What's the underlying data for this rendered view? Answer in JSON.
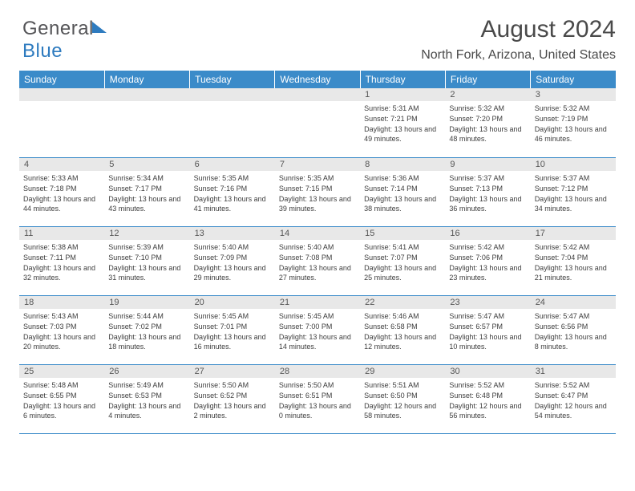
{
  "brand": {
    "part1": "General",
    "part2": "Blue"
  },
  "title": "August 2024",
  "location": "North Fork, Arizona, United States",
  "colors": {
    "header_bg": "#3b8bc9",
    "header_fg": "#ffffff",
    "daynum_bg": "#e8e8e8",
    "border": "#3b8bc9",
    "text": "#3d3d3d",
    "title_color": "#4a4a4a"
  },
  "weekdays": [
    "Sunday",
    "Monday",
    "Tuesday",
    "Wednesday",
    "Thursday",
    "Friday",
    "Saturday"
  ],
  "weeks": [
    [
      {
        "blank": true
      },
      {
        "blank": true
      },
      {
        "blank": true
      },
      {
        "blank": true
      },
      {
        "n": "1",
        "sunrise": "5:31 AM",
        "sunset": "7:21 PM",
        "day_h": "13",
        "day_m": "49"
      },
      {
        "n": "2",
        "sunrise": "5:32 AM",
        "sunset": "7:20 PM",
        "day_h": "13",
        "day_m": "48"
      },
      {
        "n": "3",
        "sunrise": "5:32 AM",
        "sunset": "7:19 PM",
        "day_h": "13",
        "day_m": "46"
      }
    ],
    [
      {
        "n": "4",
        "sunrise": "5:33 AM",
        "sunset": "7:18 PM",
        "day_h": "13",
        "day_m": "44"
      },
      {
        "n": "5",
        "sunrise": "5:34 AM",
        "sunset": "7:17 PM",
        "day_h": "13",
        "day_m": "43"
      },
      {
        "n": "6",
        "sunrise": "5:35 AM",
        "sunset": "7:16 PM",
        "day_h": "13",
        "day_m": "41"
      },
      {
        "n": "7",
        "sunrise": "5:35 AM",
        "sunset": "7:15 PM",
        "day_h": "13",
        "day_m": "39"
      },
      {
        "n": "8",
        "sunrise": "5:36 AM",
        "sunset": "7:14 PM",
        "day_h": "13",
        "day_m": "38"
      },
      {
        "n": "9",
        "sunrise": "5:37 AM",
        "sunset": "7:13 PM",
        "day_h": "13",
        "day_m": "36"
      },
      {
        "n": "10",
        "sunrise": "5:37 AM",
        "sunset": "7:12 PM",
        "day_h": "13",
        "day_m": "34"
      }
    ],
    [
      {
        "n": "11",
        "sunrise": "5:38 AM",
        "sunset": "7:11 PM",
        "day_h": "13",
        "day_m": "32"
      },
      {
        "n": "12",
        "sunrise": "5:39 AM",
        "sunset": "7:10 PM",
        "day_h": "13",
        "day_m": "31"
      },
      {
        "n": "13",
        "sunrise": "5:40 AM",
        "sunset": "7:09 PM",
        "day_h": "13",
        "day_m": "29"
      },
      {
        "n": "14",
        "sunrise": "5:40 AM",
        "sunset": "7:08 PM",
        "day_h": "13",
        "day_m": "27"
      },
      {
        "n": "15",
        "sunrise": "5:41 AM",
        "sunset": "7:07 PM",
        "day_h": "13",
        "day_m": "25"
      },
      {
        "n": "16",
        "sunrise": "5:42 AM",
        "sunset": "7:06 PM",
        "day_h": "13",
        "day_m": "23"
      },
      {
        "n": "17",
        "sunrise": "5:42 AM",
        "sunset": "7:04 PM",
        "day_h": "13",
        "day_m": "21"
      }
    ],
    [
      {
        "n": "18",
        "sunrise": "5:43 AM",
        "sunset": "7:03 PM",
        "day_h": "13",
        "day_m": "20"
      },
      {
        "n": "19",
        "sunrise": "5:44 AM",
        "sunset": "7:02 PM",
        "day_h": "13",
        "day_m": "18"
      },
      {
        "n": "20",
        "sunrise": "5:45 AM",
        "sunset": "7:01 PM",
        "day_h": "13",
        "day_m": "16"
      },
      {
        "n": "21",
        "sunrise": "5:45 AM",
        "sunset": "7:00 PM",
        "day_h": "13",
        "day_m": "14"
      },
      {
        "n": "22",
        "sunrise": "5:46 AM",
        "sunset": "6:58 PM",
        "day_h": "13",
        "day_m": "12"
      },
      {
        "n": "23",
        "sunrise": "5:47 AM",
        "sunset": "6:57 PM",
        "day_h": "13",
        "day_m": "10"
      },
      {
        "n": "24",
        "sunrise": "5:47 AM",
        "sunset": "6:56 PM",
        "day_h": "13",
        "day_m": "8"
      }
    ],
    [
      {
        "n": "25",
        "sunrise": "5:48 AM",
        "sunset": "6:55 PM",
        "day_h": "13",
        "day_m": "6"
      },
      {
        "n": "26",
        "sunrise": "5:49 AM",
        "sunset": "6:53 PM",
        "day_h": "13",
        "day_m": "4"
      },
      {
        "n": "27",
        "sunrise": "5:50 AM",
        "sunset": "6:52 PM",
        "day_h": "13",
        "day_m": "2"
      },
      {
        "n": "28",
        "sunrise": "5:50 AM",
        "sunset": "6:51 PM",
        "day_h": "13",
        "day_m": "0"
      },
      {
        "n": "29",
        "sunrise": "5:51 AM",
        "sunset": "6:50 PM",
        "day_h": "12",
        "day_m": "58"
      },
      {
        "n": "30",
        "sunrise": "5:52 AM",
        "sunset": "6:48 PM",
        "day_h": "12",
        "day_m": "56"
      },
      {
        "n": "31",
        "sunrise": "5:52 AM",
        "sunset": "6:47 PM",
        "day_h": "12",
        "day_m": "54"
      }
    ]
  ],
  "labels": {
    "sunrise": "Sunrise:",
    "sunset": "Sunset:",
    "daylight_prefix": "Daylight:",
    "hours_word": "hours",
    "and_word": "and",
    "minutes_word": "minutes."
  }
}
